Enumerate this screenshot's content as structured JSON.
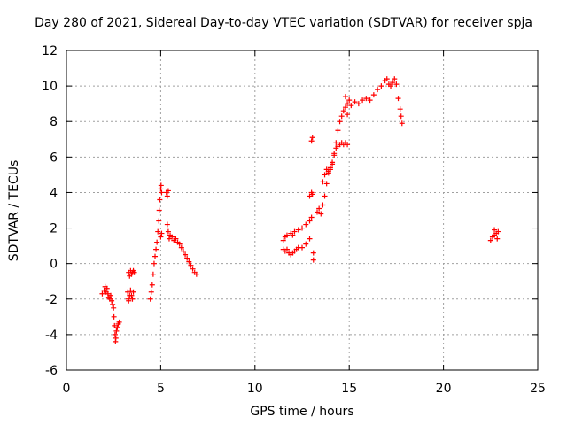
{
  "chart_data": {
    "type": "scatter",
    "title": "Day 280 of 2021, Sidereal Day-to-day VTEC variation (SDTVAR) for receiver spja",
    "xlabel": "GPS time / hours",
    "ylabel": "SDTVAR / TECUs",
    "xlim": [
      0,
      25
    ],
    "ylim": [
      -6,
      12
    ],
    "xticks": [
      "0",
      "5",
      "10",
      "15",
      "20",
      "25"
    ],
    "yticks": [
      "-6",
      "-4",
      "-2",
      "0",
      "2",
      "4",
      "6",
      "8",
      "10",
      "12"
    ],
    "grid": true,
    "marker": "+",
    "color": "#ff0000",
    "series": [
      {
        "points": [
          [
            1.9,
            -1.7
          ],
          [
            2.0,
            -1.5
          ],
          [
            2.05,
            -1.3
          ],
          [
            2.1,
            -1.6
          ],
          [
            2.15,
            -1.4
          ],
          [
            2.2,
            -1.7
          ],
          [
            2.25,
            -1.9
          ],
          [
            2.3,
            -2.0
          ],
          [
            2.35,
            -1.8
          ],
          [
            2.4,
            -2.1
          ],
          [
            2.45,
            -2.3
          ],
          [
            2.5,
            -2.5
          ],
          [
            2.52,
            -3.0
          ],
          [
            2.55,
            -3.5
          ],
          [
            2.58,
            -4.0
          ],
          [
            2.6,
            -4.4
          ],
          [
            2.62,
            -4.2
          ],
          [
            2.65,
            -3.8
          ],
          [
            2.7,
            -3.6
          ],
          [
            2.75,
            -3.4
          ],
          [
            2.8,
            -3.3
          ],
          [
            3.25,
            -1.6
          ],
          [
            3.28,
            -2.0
          ],
          [
            3.3,
            -2.1
          ],
          [
            3.35,
            -1.8
          ],
          [
            3.4,
            -1.5
          ],
          [
            3.45,
            -1.8
          ],
          [
            3.5,
            -2.0
          ],
          [
            3.55,
            -1.6
          ],
          [
            3.3,
            -0.5
          ],
          [
            3.35,
            -0.7
          ],
          [
            3.4,
            -0.4
          ],
          [
            3.45,
            -0.6
          ],
          [
            3.5,
            -0.5
          ],
          [
            3.55,
            -0.4
          ],
          [
            3.6,
            -0.5
          ],
          [
            4.45,
            -2.0
          ],
          [
            4.5,
            -1.6
          ],
          [
            4.55,
            -1.2
          ],
          [
            4.6,
            -0.6
          ],
          [
            4.65,
            0.0
          ],
          [
            4.7,
            0.4
          ],
          [
            4.75,
            0.8
          ],
          [
            4.8,
            1.2
          ],
          [
            4.85,
            1.8
          ],
          [
            4.9,
            2.4
          ],
          [
            4.92,
            3.0
          ],
          [
            4.95,
            3.6
          ],
          [
            5.0,
            4.2
          ],
          [
            5.02,
            4.4
          ],
          [
            5.05,
            4.0
          ],
          [
            5.0,
            1.5
          ],
          [
            5.05,
            1.7
          ],
          [
            5.3,
            4.0
          ],
          [
            5.35,
            3.8
          ],
          [
            5.4,
            4.1
          ],
          [
            5.35,
            2.2
          ],
          [
            5.4,
            1.8
          ],
          [
            5.45,
            1.4
          ],
          [
            5.5,
            1.6
          ],
          [
            5.6,
            1.5
          ],
          [
            5.7,
            1.3
          ],
          [
            5.8,
            1.4
          ],
          [
            5.9,
            1.2
          ],
          [
            6.0,
            1.1
          ],
          [
            6.1,
            0.9
          ],
          [
            6.2,
            0.7
          ],
          [
            6.3,
            0.5
          ],
          [
            6.4,
            0.3
          ],
          [
            6.5,
            0.1
          ],
          [
            6.6,
            -0.1
          ],
          [
            6.7,
            -0.3
          ],
          [
            6.8,
            -0.5
          ],
          [
            6.9,
            -0.6
          ],
          [
            11.5,
            0.8
          ],
          [
            11.6,
            0.7
          ],
          [
            11.7,
            0.8
          ],
          [
            11.8,
            0.6
          ],
          [
            11.9,
            0.5
          ],
          [
            12.0,
            0.6
          ],
          [
            12.1,
            0.7
          ],
          [
            12.2,
            0.8
          ],
          [
            12.3,
            0.9
          ],
          [
            12.5,
            0.9
          ],
          [
            12.7,
            1.1
          ],
          [
            12.9,
            1.4
          ],
          [
            11.5,
            1.3
          ],
          [
            11.6,
            1.5
          ],
          [
            11.7,
            1.6
          ],
          [
            11.9,
            1.7
          ],
          [
            12.0,
            1.6
          ],
          [
            12.1,
            1.8
          ],
          [
            12.3,
            1.9
          ],
          [
            12.5,
            2.0
          ],
          [
            12.7,
            2.2
          ],
          [
            12.9,
            2.4
          ],
          [
            13.0,
            2.6
          ],
          [
            12.9,
            3.8
          ],
          [
            13.0,
            4.0
          ],
          [
            13.05,
            3.9
          ],
          [
            13.0,
            6.9
          ],
          [
            13.05,
            7.1
          ],
          [
            13.1,
            0.6
          ],
          [
            13.1,
            0.2
          ],
          [
            13.3,
            2.9
          ],
          [
            13.4,
            3.1
          ],
          [
            13.5,
            2.8
          ],
          [
            13.6,
            3.3
          ],
          [
            13.7,
            3.8
          ],
          [
            13.8,
            4.5
          ],
          [
            13.9,
            5.1
          ],
          [
            14.0,
            5.4
          ],
          [
            14.1,
            5.7
          ],
          [
            14.2,
            6.1
          ],
          [
            14.3,
            6.5
          ],
          [
            14.4,
            6.6
          ],
          [
            14.5,
            6.7
          ],
          [
            14.6,
            6.8
          ],
          [
            14.7,
            6.7
          ],
          [
            14.8,
            6.8
          ],
          [
            14.9,
            6.7
          ],
          [
            13.6,
            4.6
          ],
          [
            13.7,
            5.0
          ],
          [
            13.8,
            5.3
          ],
          [
            13.9,
            5.2
          ],
          [
            14.0,
            5.3
          ],
          [
            14.1,
            5.6
          ],
          [
            14.2,
            6.2
          ],
          [
            14.3,
            6.8
          ],
          [
            14.4,
            7.5
          ],
          [
            14.5,
            8.0
          ],
          [
            14.6,
            8.3
          ],
          [
            14.7,
            8.6
          ],
          [
            14.8,
            8.8
          ],
          [
            14.9,
            9.0
          ],
          [
            15.0,
            9.2
          ],
          [
            14.8,
            9.4
          ],
          [
            14.9,
            8.4
          ],
          [
            15.1,
            8.9
          ],
          [
            15.3,
            9.1
          ],
          [
            15.5,
            9.0
          ],
          [
            15.7,
            9.2
          ],
          [
            15.9,
            9.3
          ],
          [
            16.1,
            9.2
          ],
          [
            16.3,
            9.5
          ],
          [
            16.5,
            9.8
          ],
          [
            16.7,
            10.0
          ],
          [
            16.9,
            10.3
          ],
          [
            17.0,
            10.4
          ],
          [
            17.1,
            10.1
          ],
          [
            17.2,
            10.0
          ],
          [
            17.3,
            10.2
          ],
          [
            17.4,
            10.4
          ],
          [
            17.5,
            10.1
          ],
          [
            17.6,
            9.3
          ],
          [
            17.7,
            8.7
          ],
          [
            17.75,
            8.3
          ],
          [
            17.8,
            7.9
          ],
          [
            22.5,
            1.3
          ],
          [
            22.6,
            1.5
          ],
          [
            22.7,
            1.6
          ],
          [
            22.8,
            1.7
          ],
          [
            22.9,
            1.8
          ],
          [
            22.7,
            1.9
          ],
          [
            22.85,
            1.4
          ]
        ]
      }
    ]
  }
}
